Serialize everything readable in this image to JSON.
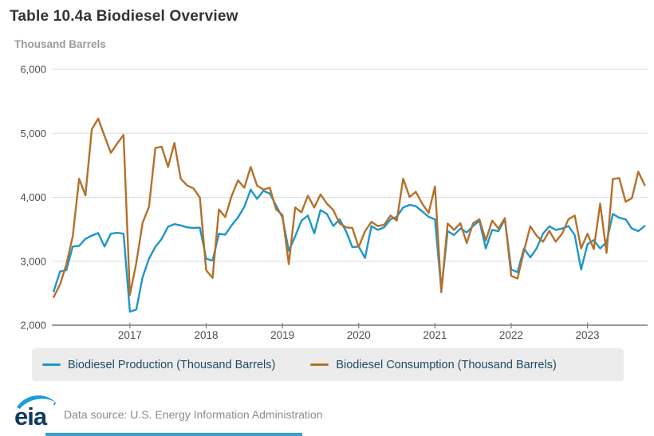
{
  "header": {
    "title": "Table 10.4a Biodiesel Overview",
    "units_label": "Thousand Barrels"
  },
  "legend": {
    "items": [
      {
        "label": "Biodiesel Production (Thousand Barrels)",
        "color": "#1e96c8"
      },
      {
        "label": "Biodiesel Consumption (Thousand Barrels)",
        "color": "#b5702a"
      }
    ]
  },
  "footer": {
    "logo_text": "eia",
    "source_text": "Data source: U.S. Energy Information Administration"
  },
  "colors": {
    "production_line": "#1e96c8",
    "consumption_line": "#b5702a",
    "gridline": "#dddddd",
    "axis_line": "#7a7a7a",
    "tick_label": "#4d4d4d",
    "legend_bg": "#ececec",
    "legend_text": "#1f4a63",
    "title_text": "#333333",
    "subtitle_text": "#9a9a9a",
    "source_text": "#8c8c8c",
    "logo_navy": "#0f3a5c",
    "logo_blue": "#1a9dd9"
  },
  "chart_data": {
    "type": "line",
    "title": "Table 10.4a Biodiesel Overview",
    "xlabel": "",
    "ylabel": "Thousand Barrels",
    "ylim": [
      2000,
      6000
    ],
    "grid": true,
    "legend_position": "bottom",
    "yticks": [
      {
        "value": 2000,
        "label": "2,000"
      },
      {
        "value": 3000,
        "label": "3,000"
      },
      {
        "value": 4000,
        "label": "4,000"
      },
      {
        "value": 5000,
        "label": "5,000"
      },
      {
        "value": 6000,
        "label": "6,000"
      }
    ],
    "xticks": [
      {
        "year": 2017,
        "label": "2017"
      },
      {
        "year": 2018,
        "label": "2018"
      },
      {
        "year": 2019,
        "label": "2019"
      },
      {
        "year": 2020,
        "label": "2020"
      },
      {
        "year": 2021,
        "label": "2021"
      },
      {
        "year": 2022,
        "label": "2022"
      },
      {
        "year": 2023,
        "label": "2023"
      }
    ],
    "x_months": [
      "2016-01",
      "2016-02",
      "2016-03",
      "2016-04",
      "2016-05",
      "2016-06",
      "2016-07",
      "2016-08",
      "2016-09",
      "2016-10",
      "2016-11",
      "2016-12",
      "2017-01",
      "2017-02",
      "2017-03",
      "2017-04",
      "2017-05",
      "2017-06",
      "2017-07",
      "2017-08",
      "2017-09",
      "2017-10",
      "2017-11",
      "2017-12",
      "2018-01",
      "2018-02",
      "2018-03",
      "2018-04",
      "2018-05",
      "2018-06",
      "2018-07",
      "2018-08",
      "2018-09",
      "2018-10",
      "2018-11",
      "2018-12",
      "2019-01",
      "2019-02",
      "2019-03",
      "2019-04",
      "2019-05",
      "2019-06",
      "2019-07",
      "2019-08",
      "2019-09",
      "2019-10",
      "2019-11",
      "2019-12",
      "2020-01",
      "2020-02",
      "2020-03",
      "2020-04",
      "2020-05",
      "2020-06",
      "2020-07",
      "2020-08",
      "2020-09",
      "2020-10",
      "2020-11",
      "2020-12",
      "2021-01",
      "2021-02",
      "2021-03",
      "2021-04",
      "2021-05",
      "2021-06",
      "2021-07",
      "2021-08",
      "2021-09",
      "2021-10",
      "2021-11",
      "2021-12",
      "2022-01",
      "2022-02",
      "2022-03",
      "2022-04",
      "2022-05",
      "2022-06",
      "2022-07",
      "2022-08",
      "2022-09",
      "2022-10",
      "2022-11",
      "2022-12",
      "2023-01",
      "2023-02",
      "2023-03",
      "2023-04",
      "2023-05",
      "2023-06",
      "2023-07",
      "2023-08",
      "2023-09",
      "2023-10"
    ],
    "series": [
      {
        "name": "Biodiesel Production (Thousand Barrels)",
        "color": "#1e96c8",
        "values": [
          2530,
          2840,
          2860,
          3230,
          3240,
          3350,
          3400,
          3440,
          3230,
          3430,
          3445,
          3430,
          2210,
          2245,
          2750,
          3040,
          3225,
          3350,
          3540,
          3580,
          3560,
          3530,
          3520,
          3525,
          3040,
          3010,
          3430,
          3415,
          3560,
          3685,
          3850,
          4120,
          3975,
          4100,
          4060,
          3870,
          3685,
          3165,
          3390,
          3635,
          3715,
          3435,
          3800,
          3740,
          3550,
          3655,
          3470,
          3220,
          3230,
          3050,
          3550,
          3490,
          3530,
          3655,
          3695,
          3840,
          3880,
          3860,
          3780,
          3695,
          3655,
          2550,
          3470,
          3410,
          3510,
          3450,
          3550,
          3635,
          3200,
          3490,
          3470,
          3655,
          2870,
          2830,
          3200,
          3060,
          3200,
          3430,
          3545,
          3490,
          3510,
          3550,
          3410,
          2870,
          3265,
          3330,
          3200,
          3300,
          3740,
          3680,
          3655,
          3510,
          3470,
          3550
        ]
      },
      {
        "name": "Biodiesel Consumption (Thousand Barrels)",
        "color": "#b5702a",
        "values": [
          2440,
          2640,
          2950,
          3390,
          4290,
          4030,
          5060,
          5230,
          4960,
          4695,
          4840,
          4975,
          2475,
          2975,
          3600,
          3850,
          4770,
          4790,
          4475,
          4850,
          4290,
          4185,
          4140,
          3995,
          2860,
          2740,
          3810,
          3690,
          4020,
          4265,
          4150,
          4475,
          4185,
          4120,
          4150,
          3810,
          3725,
          2955,
          3840,
          3765,
          4025,
          3840,
          4045,
          3900,
          3800,
          3590,
          3530,
          3520,
          3220,
          3470,
          3615,
          3550,
          3570,
          3715,
          3635,
          4290,
          4005,
          4085,
          3900,
          3755,
          4170,
          2515,
          3590,
          3490,
          3595,
          3285,
          3595,
          3655,
          3325,
          3635,
          3510,
          3675,
          2770,
          2730,
          3160,
          3545,
          3400,
          3305,
          3475,
          3305,
          3430,
          3655,
          3715,
          3200,
          3430,
          3190,
          3900,
          3130,
          4285,
          4300,
          3930,
          3985,
          4400,
          4190
        ]
      }
    ]
  }
}
